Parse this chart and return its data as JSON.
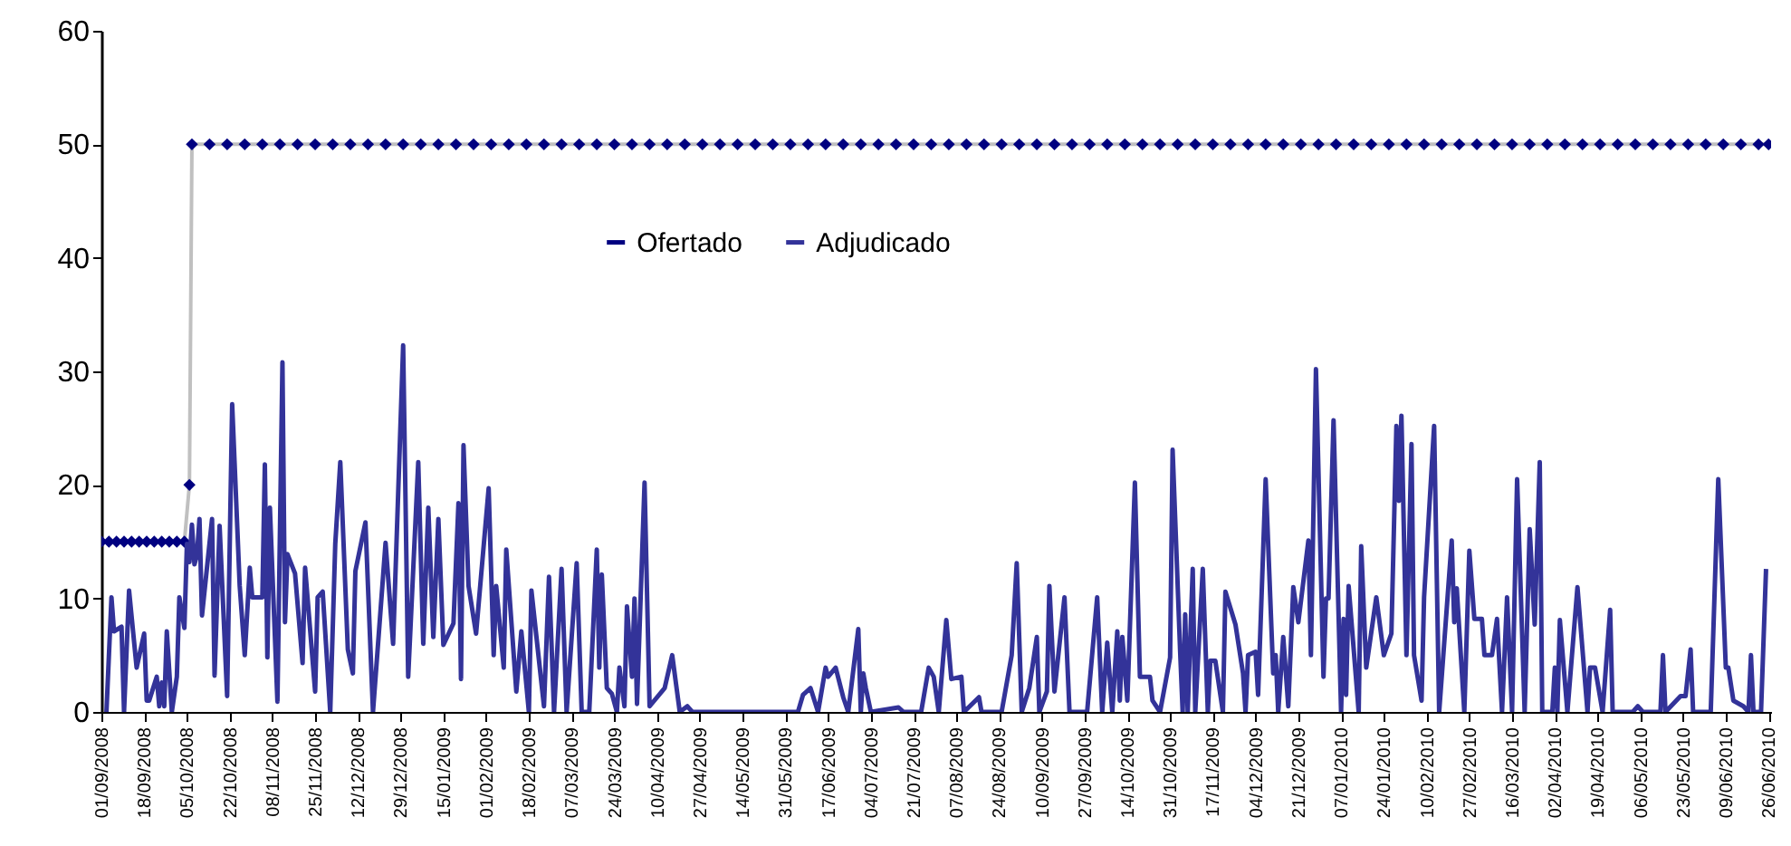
{
  "chart_data": {
    "type": "line",
    "ylim": [
      0,
      60
    ],
    "yticks": [
      0,
      10,
      20,
      30,
      40,
      50,
      60
    ],
    "legend": "top",
    "xlim": [
      "2008-09-01",
      "2010-06-27"
    ],
    "xticks": [
      {
        "value": "2008-09-01",
        "label": "01/09/2008"
      },
      {
        "value": "2008-09-18",
        "label": "18/09/2008"
      },
      {
        "value": "2008-10-05",
        "label": "05/10/2008"
      },
      {
        "value": "2008-10-22",
        "label": "22/10/2008"
      },
      {
        "value": "2008-11-08",
        "label": "08/11/2008"
      },
      {
        "value": "2008-11-25",
        "label": "25/11/2008"
      },
      {
        "value": "2008-12-12",
        "label": "12/12/2008"
      },
      {
        "value": "2008-12-29",
        "label": "29/12/2008"
      },
      {
        "value": "2009-01-15",
        "label": "15/01/2009"
      },
      {
        "value": "2009-02-01",
        "label": "01/02/2009"
      },
      {
        "value": "2009-02-18",
        "label": "18/02/2009"
      },
      {
        "value": "2009-03-07",
        "label": "07/03/2009"
      },
      {
        "value": "2009-03-24",
        "label": "24/03/2009"
      },
      {
        "value": "2009-04-10",
        "label": "10/04/2009"
      },
      {
        "value": "2009-04-27",
        "label": "27/04/2009"
      },
      {
        "value": "2009-05-14",
        "label": "14/05/2009"
      },
      {
        "value": "2009-05-31",
        "label": "31/05/2009"
      },
      {
        "value": "2009-06-17",
        "label": "17/06/2009"
      },
      {
        "value": "2009-07-04",
        "label": "04/07/2009"
      },
      {
        "value": "2009-07-21",
        "label": "21/07/2009"
      },
      {
        "value": "2009-08-07",
        "label": "07/08/2009"
      },
      {
        "value": "2009-08-24",
        "label": "24/08/2009"
      },
      {
        "value": "2009-09-10",
        "label": "10/09/2009"
      },
      {
        "value": "2009-09-27",
        "label": "27/09/2009"
      },
      {
        "value": "2009-10-14",
        "label": "14/10/2009"
      },
      {
        "value": "2009-10-31",
        "label": "31/10/2009"
      },
      {
        "value": "2009-11-17",
        "label": "17/11/2009"
      },
      {
        "value": "2009-12-04",
        "label": "04/12/2009"
      },
      {
        "value": "2009-12-21",
        "label": "21/12/2009"
      },
      {
        "value": "2010-01-07",
        "label": "07/01/2010"
      },
      {
        "value": "2010-01-24",
        "label": "24/01/2010"
      },
      {
        "value": "2010-02-10",
        "label": "10/02/2010"
      },
      {
        "value": "2010-02-27",
        "label": "27/02/2010"
      },
      {
        "value": "2010-03-16",
        "label": "16/03/2010"
      },
      {
        "value": "2010-04-02",
        "label": "02/04/2010"
      },
      {
        "value": "2010-04-19",
        "label": "19/04/2010"
      },
      {
        "value": "2010-05-06",
        "label": "06/05/2010"
      },
      {
        "value": "2010-05-23",
        "label": "23/05/2010"
      },
      {
        "value": "2010-06-09",
        "label": "09/06/2010"
      },
      {
        "value": "2010-06-26",
        "label": "26/06/2010"
      }
    ],
    "series": [
      {
        "name": "Ofertado",
        "color": "#000080",
        "marker": "diamond",
        "x": [
          "2008-09-01",
          "2008-09-04",
          "2008-09-07",
          "2008-09-10",
          "2008-09-13",
          "2008-09-16",
          "2008-09-19",
          "2008-09-22",
          "2008-09-25",
          "2008-09-28",
          "2008-10-01",
          "2008-10-04",
          "2008-10-06",
          "2008-10-07",
          "2008-10-14",
          "2008-10-21",
          "2008-10-28",
          "2008-11-04",
          "2008-11-11",
          "2008-11-18",
          "2008-11-25",
          "2008-12-02",
          "2008-12-09",
          "2008-12-16",
          "2008-12-23",
          "2008-12-30",
          "2009-01-06",
          "2009-01-13",
          "2009-01-20",
          "2009-01-27",
          "2009-02-03",
          "2009-02-10",
          "2009-02-17",
          "2009-02-24",
          "2009-03-03",
          "2009-03-10",
          "2009-03-17",
          "2009-03-24",
          "2009-03-31",
          "2009-04-07",
          "2009-04-14",
          "2009-04-21",
          "2009-04-28",
          "2009-05-05",
          "2009-05-12",
          "2009-05-19",
          "2009-05-26",
          "2009-06-02",
          "2009-06-09",
          "2009-06-16",
          "2009-06-23",
          "2009-06-30",
          "2009-07-07",
          "2009-07-14",
          "2009-07-21",
          "2009-07-28",
          "2009-08-04",
          "2009-08-11",
          "2009-08-18",
          "2009-08-25",
          "2009-09-01",
          "2009-09-08",
          "2009-09-15",
          "2009-09-22",
          "2009-09-29",
          "2009-10-06",
          "2009-10-13",
          "2009-10-20",
          "2009-10-27",
          "2009-11-03",
          "2009-11-10",
          "2009-11-17",
          "2009-11-24",
          "2009-12-01",
          "2009-12-08",
          "2009-12-15",
          "2009-12-22",
          "2009-12-29",
          "2010-01-05",
          "2010-01-12",
          "2010-01-19",
          "2010-01-26",
          "2010-02-02",
          "2010-02-09",
          "2010-02-16",
          "2010-02-23",
          "2010-03-02",
          "2010-03-09",
          "2010-03-16",
          "2010-03-23",
          "2010-03-30",
          "2010-04-06",
          "2010-04-13",
          "2010-04-20",
          "2010-04-27",
          "2010-05-04",
          "2010-05-11",
          "2010-05-18",
          "2010-05-25",
          "2010-06-01",
          "2010-06-08",
          "2010-06-15",
          "2010-06-22",
          "2010-06-26"
        ],
        "values": [
          15,
          15,
          15,
          15,
          15,
          15,
          15,
          15,
          15,
          15,
          15,
          15,
          20,
          50,
          50,
          50,
          50,
          50,
          50,
          50,
          50,
          50,
          50,
          50,
          50,
          50,
          50,
          50,
          50,
          50,
          50,
          50,
          50,
          50,
          50,
          50,
          50,
          50,
          50,
          50,
          50,
          50,
          50,
          50,
          50,
          50,
          50,
          50,
          50,
          50,
          50,
          50,
          50,
          50,
          50,
          50,
          50,
          50,
          50,
          50,
          50,
          50,
          50,
          50,
          50,
          50,
          50,
          50,
          50,
          50,
          50,
          50,
          50,
          50,
          50,
          50,
          50,
          50,
          50,
          50,
          50,
          50,
          50,
          50,
          50,
          50,
          50,
          50,
          50,
          50,
          50,
          50,
          50,
          50,
          50,
          50,
          50,
          50,
          50,
          50,
          50,
          50,
          50,
          50
        ]
      },
      {
        "name": "Adjudicado",
        "color": "#333399",
        "x": [
          "2008-09-03",
          "2008-09-05",
          "2008-09-06",
          "2008-09-09",
          "2008-09-10",
          "2008-09-12",
          "2008-09-15",
          "2008-09-18",
          "2008-09-19",
          "2008-09-20",
          "2008-09-23",
          "2008-09-24",
          "2008-09-25",
          "2008-09-26",
          "2008-09-27",
          "2008-09-29",
          "2008-10-01",
          "2008-10-02",
          "2008-10-04",
          "2008-10-05",
          "2008-10-06",
          "2008-10-07",
          "2008-10-08",
          "2008-10-09",
          "2008-10-10",
          "2008-10-11",
          "2008-10-15",
          "2008-10-16",
          "2008-10-18",
          "2008-10-21",
          "2008-10-23",
          "2008-10-26",
          "2008-10-28",
          "2008-10-30",
          "2008-10-31",
          "2008-11-04",
          "2008-11-05",
          "2008-11-06",
          "2008-11-07",
          "2008-11-10",
          "2008-11-12",
          "2008-11-13",
          "2008-11-14",
          "2008-11-17",
          "2008-11-20",
          "2008-11-21",
          "2008-11-25",
          "2008-11-26",
          "2008-11-28",
          "2008-12-01",
          "2008-12-03",
          "2008-12-05",
          "2008-12-08",
          "2008-12-10",
          "2008-12-11",
          "2008-12-15",
          "2008-12-18",
          "2008-12-23",
          "2008-12-26",
          "2008-12-30",
          "2009-01-01",
          "2009-01-05",
          "2009-01-07",
          "2009-01-09",
          "2009-01-11",
          "2009-01-13",
          "2009-01-15",
          "2009-01-19",
          "2009-01-21",
          "2009-01-22",
          "2009-01-23",
          "2009-01-25",
          "2009-01-28",
          "2009-02-02",
          "2009-02-04",
          "2009-02-05",
          "2009-02-08",
          "2009-02-09",
          "2009-02-13",
          "2009-02-15",
          "2009-02-18",
          "2009-02-19",
          "2009-02-24",
          "2009-02-26",
          "2009-02-28",
          "2009-03-03",
          "2009-03-05",
          "2009-03-09",
          "2009-03-11",
          "2009-03-14",
          "2009-03-17",
          "2009-03-18",
          "2009-03-19",
          "2009-03-21",
          "2009-03-23",
          "2009-03-25",
          "2009-03-26",
          "2009-03-28",
          "2009-03-29",
          "2009-03-31",
          "2009-04-01",
          "2009-04-02",
          "2009-04-05",
          "2009-04-07",
          "2009-04-13",
          "2009-04-16",
          "2009-04-19",
          "2009-04-22",
          "2009-04-24",
          "2009-06-05",
          "2009-06-07",
          "2009-06-10",
          "2009-06-13",
          "2009-06-16",
          "2009-06-17",
          "2009-06-20",
          "2009-06-23",
          "2009-06-25",
          "2009-06-29",
          "2009-06-30",
          "2009-07-01",
          "2009-07-02",
          "2009-07-04",
          "2009-07-15",
          "2009-07-17",
          "2009-07-24",
          "2009-07-27",
          "2009-07-29",
          "2009-07-31",
          "2009-08-03",
          "2009-08-05",
          "2009-08-09",
          "2009-08-10",
          "2009-08-16",
          "2009-08-17",
          "2009-08-25",
          "2009-08-29",
          "2009-08-31",
          "2009-09-02",
          "2009-09-05",
          "2009-09-08",
          "2009-09-09",
          "2009-09-12",
          "2009-09-13",
          "2009-09-15",
          "2009-09-19",
          "2009-09-21",
          "2009-09-28",
          "2009-10-02",
          "2009-10-04",
          "2009-10-06",
          "2009-10-08",
          "2009-10-10",
          "2009-10-11",
          "2009-10-12",
          "2009-10-14",
          "2009-10-17",
          "2009-10-19",
          "2009-10-23",
          "2009-10-24",
          "2009-10-27",
          "2009-10-31",
          "2009-11-01",
          "2009-11-04",
          "2009-11-05",
          "2009-11-06",
          "2009-11-07",
          "2009-11-09",
          "2009-11-10",
          "2009-11-13",
          "2009-11-15",
          "2009-11-16",
          "2009-11-18",
          "2009-11-21",
          "2009-11-22",
          "2009-11-26",
          "2009-11-29",
          "2009-11-30",
          "2009-12-01",
          "2009-12-04",
          "2009-12-05",
          "2009-12-08",
          "2009-12-11",
          "2009-12-12",
          "2009-12-13",
          "2009-12-15",
          "2009-12-17",
          "2009-12-19",
          "2009-12-21",
          "2009-12-25",
          "2009-12-26",
          "2009-12-28",
          "2009-12-31",
          "2010-01-01",
          "2010-01-02",
          "2010-01-04",
          "2010-01-07",
          "2010-01-08",
          "2010-01-09",
          "2010-01-10",
          "2010-01-14",
          "2010-01-15",
          "2010-01-17",
          "2010-01-21",
          "2010-01-24",
          "2010-01-27",
          "2010-01-29",
          "2010-01-30",
          "2010-01-31",
          "2010-02-02",
          "2010-02-04",
          "2010-02-05",
          "2010-02-08",
          "2010-02-09",
          "2010-02-13",
          "2010-02-15",
          "2010-02-20",
          "2010-02-21",
          "2010-02-22",
          "2010-02-25",
          "2010-02-27",
          "2010-03-01",
          "2010-03-04",
          "2010-03-05",
          "2010-03-08",
          "2010-03-10",
          "2010-03-12",
          "2010-03-14",
          "2010-03-16",
          "2010-03-18",
          "2010-03-21",
          "2010-03-23",
          "2010-03-25",
          "2010-03-27",
          "2010-03-28",
          "2010-04-01",
          "2010-04-02",
          "2010-04-03",
          "2010-04-04",
          "2010-04-07",
          "2010-04-11",
          "2010-04-15",
          "2010-04-16",
          "2010-04-18",
          "2010-04-21",
          "2010-04-24",
          "2010-04-25",
          "2010-05-03",
          "2010-05-05",
          "2010-05-07",
          "2010-05-14",
          "2010-05-15",
          "2010-05-16",
          "2010-05-22",
          "2010-05-24",
          "2010-05-26",
          "2010-05-27",
          "2010-06-03",
          "2010-06-06",
          "2010-06-09",
          "2010-06-10",
          "2010-06-12",
          "2010-06-16",
          "2010-06-18",
          "2010-06-19",
          "2010-06-20",
          "2010-06-23",
          "2010-06-25"
        ],
        "values": [
          0,
          10.1,
          7.1,
          7.5,
          0,
          10.7,
          3.9,
          6.9,
          1,
          1,
          3.1,
          0.5,
          2.6,
          0.5,
          7.1,
          0,
          3.1,
          10.1,
          7.4,
          14.8,
          13.2,
          16.5,
          13,
          13.8,
          17,
          8.5,
          17,
          3.2,
          16.4,
          1.4,
          27.1,
          11.1,
          5,
          12.7,
          10.1,
          10.1,
          21.8,
          4.8,
          18,
          0.9,
          30.8,
          7.9,
          13.9,
          12.2,
          4.3,
          12.7,
          1.8,
          10.1,
          10.6,
          0,
          14.8,
          22,
          5.5,
          3.4,
          12.4,
          16.7,
          0,
          14.9,
          6,
          32.3,
          3.1,
          22,
          6,
          18,
          6.6,
          17,
          5.9,
          7.8,
          18.4,
          2.9,
          23.5,
          11.1,
          6.9,
          19.7,
          5,
          11.1,
          3.9,
          14.3,
          1.8,
          7.1,
          0,
          10.7,
          0.5,
          11.9,
          0,
          12.6,
          0,
          13.1,
          0,
          0,
          14.3,
          3.9,
          12.1,
          2.1,
          1.6,
          0,
          3.9,
          0.5,
          9.3,
          3.1,
          10,
          0.7,
          20.2,
          0.5,
          2.1,
          5,
          0,
          0.5,
          0,
          0,
          1.5,
          2.1,
          0,
          3.9,
          3.1,
          3.9,
          1.3,
          0,
          7.3,
          0,
          3.4,
          2.1,
          0,
          0.4,
          0,
          0,
          3.9,
          3.1,
          0,
          8.1,
          2.9,
          3.1,
          0,
          1.3,
          0,
          0,
          5,
          13.1,
          0,
          2.1,
          6.6,
          0,
          1.8,
          11.1,
          1.8,
          10.1,
          0,
          0,
          10.1,
          0,
          6.1,
          0,
          7.1,
          1,
          6.6,
          1,
          20.2,
          3.1,
          3.1,
          1,
          0,
          4.8,
          23.1,
          5.3,
          0,
          8.6,
          0,
          12.6,
          0,
          12.6,
          0,
          4.5,
          4.5,
          0,
          10.6,
          7.7,
          3.4,
          0,
          5,
          5.3,
          1.5,
          20.5,
          3.4,
          5,
          0,
          6.6,
          0.5,
          11,
          7.9,
          15.1,
          5,
          30.2,
          3.1,
          10,
          10,
          25.7,
          0,
          8.2,
          1.5,
          11.1,
          0,
          14.6,
          3.9,
          10.1,
          5,
          6.9,
          25.2,
          18.6,
          26.1,
          5,
          23.6,
          5,
          1,
          10.1,
          25.2,
          0,
          15.1,
          7.9,
          10.9,
          0,
          14.2,
          8.2,
          8.2,
          5,
          5,
          8.2,
          0,
          10.1,
          0,
          20.5,
          0,
          16.1,
          7.7,
          22,
          0,
          0,
          3.9,
          0,
          8.1,
          0,
          11,
          0,
          3.9,
          3.9,
          0,
          9,
          0,
          0,
          0.5,
          0,
          0,
          5,
          0,
          1.4,
          1.4,
          5.5,
          0,
          0,
          20.5,
          3.9,
          3.9,
          1,
          0.5,
          0,
          5,
          0,
          0,
          12.6
        ]
      }
    ]
  }
}
